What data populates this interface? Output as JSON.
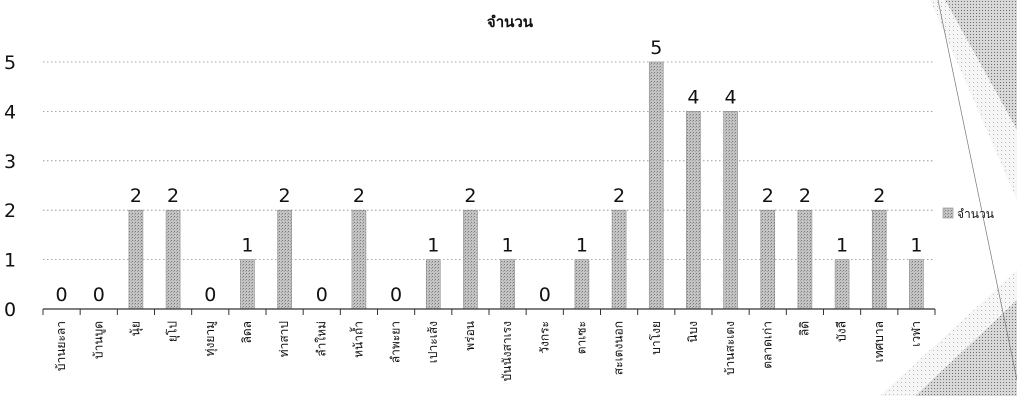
{
  "chart_data": {
    "type": "bar",
    "title": "จำนวน",
    "categories": [
      "บ้านยะลา",
      "บ้านบูด",
      "นุ้ย",
      "ยุโป",
      "ทุ่งยามู",
      "ลิดล",
      "ท่าสาป",
      "ลำใหม่",
      "หน้าถ้ำ",
      "ลำพะยา",
      "เปาะเส้ง",
      "พร่อน",
      "บันนังสาเรง",
      "วังกระ",
      "ตาเซะ",
      "สะเตงนอก",
      "บาโงย",
      "นิบง",
      "บ้านสะเตง",
      "ตลาดเก่า",
      "ลิดิ",
      "บังลี",
      "เทศบาล",
      "เวฬา"
    ],
    "series": [
      {
        "name": "จำนวน",
        "values": [
          0,
          0,
          2,
          2,
          0,
          1,
          2,
          0,
          2,
          0,
          1,
          2,
          1,
          0,
          1,
          2,
          5,
          4,
          4,
          2,
          2,
          1,
          2,
          1
        ]
      }
    ],
    "ylim": [
      0,
      5
    ],
    "yticks": [
      "0",
      "1",
      "2",
      "3",
      "4",
      "5"
    ],
    "grid": true,
    "legend": "right",
    "colors": {
      "bar": "#bdbdbd",
      "bar_stroke": "#8c8c8c",
      "grid": "#8a8a8a"
    }
  }
}
